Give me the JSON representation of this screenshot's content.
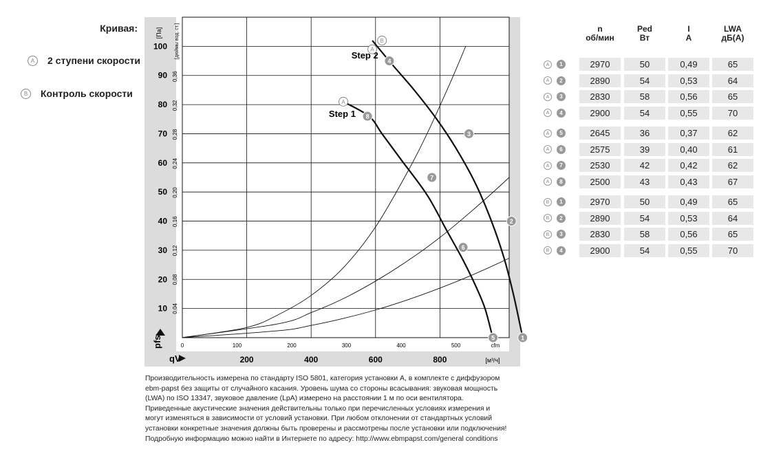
{
  "legend": {
    "title": "Кривая:",
    "items": [
      {
        "marker": "A",
        "label": "2 ступени скорости"
      },
      {
        "marker": "B",
        "label": "Контроль скорости"
      }
    ]
  },
  "chart_data": {
    "type": "line",
    "y_unit_left": "[Па]",
    "y_unit_right": "[дюймы вод. ст.]",
    "y_symbol": "pfs",
    "x_symbol": "qV",
    "x_unit_bottom": "[м³/ч]",
    "x_unit_top": "cfm",
    "y_ticks_pa": [
      10,
      20,
      30,
      40,
      50,
      60,
      70,
      80,
      90,
      100
    ],
    "y_ticks_inwg": [
      "0,04",
      "0,08",
      "0,12",
      "0,16",
      "0,20",
      "0,24",
      "0,28",
      "0,32",
      "0,36"
    ],
    "x_ticks_m3h": [
      200,
      400,
      600,
      800
    ],
    "x_ticks_cfm": [
      0,
      100,
      200,
      300,
      400,
      500
    ],
    "xlim_m3h": [
      0,
      1015
    ],
    "ylim_pa": [
      0,
      110
    ],
    "grid": true,
    "annotations": [
      {
        "text": "Step 2",
        "x": 525,
        "y": 97
      },
      {
        "text": "Step 1",
        "x": 455,
        "y": 77
      }
    ],
    "curves": [
      {
        "marker": "A",
        "points": [
          [
            500,
            81
          ],
          [
            580,
            76
          ],
          [
            620,
            70
          ],
          [
            680,
            61
          ],
          [
            760,
            49
          ],
          [
            820,
            37
          ],
          [
            870,
            27
          ],
          [
            910,
            18
          ],
          [
            940,
            10
          ],
          [
            964,
            0
          ]
        ]
      },
      {
        "marker": "B",
        "points": [
          [
            590,
            102
          ],
          [
            650,
            94
          ],
          [
            720,
            85
          ],
          [
            790,
            75
          ],
          [
            850,
            65
          ],
          [
            910,
            53
          ],
          [
            960,
            40
          ],
          [
            1000,
            27
          ],
          [
            1030,
            14
          ],
          [
            1057,
            0
          ]
        ]
      }
    ],
    "system_curves": [
      {
        "points": [
          [
            0,
            0
          ],
          [
            200,
            3.5
          ],
          [
            300,
            8
          ],
          [
            400,
            14.5
          ],
          [
            500,
            24
          ],
          [
            600,
            38
          ],
          [
            700,
            57
          ],
          [
            760,
            70
          ],
          [
            830,
            87
          ],
          [
            880,
            100
          ]
        ]
      },
      {
        "points": [
          [
            0,
            0
          ],
          [
            300,
            4.8
          ],
          [
            400,
            8.6
          ],
          [
            500,
            13.4
          ],
          [
            600,
            19.4
          ],
          [
            700,
            26.4
          ],
          [
            800,
            34.4
          ],
          [
            900,
            43.6
          ],
          [
            1010,
            54.5
          ],
          [
            1085,
            63
          ]
        ]
      },
      {
        "points": [
          [
            0,
            0
          ],
          [
            300,
            2.4
          ],
          [
            400,
            4.2
          ],
          [
            500,
            6.6
          ],
          [
            600,
            9.5
          ],
          [
            700,
            13
          ],
          [
            800,
            17
          ],
          [
            900,
            21.5
          ],
          [
            1000,
            26.5
          ],
          [
            1100,
            32
          ],
          [
            1190,
            39
          ],
          [
            1230,
            43
          ]
        ]
      }
    ],
    "points": [
      {
        "label": "1",
        "x": 1057,
        "y": 0
      },
      {
        "label": "2",
        "x": 1022,
        "y": 40
      },
      {
        "label": "3",
        "x": 890,
        "y": 70
      },
      {
        "label": "4",
        "x": 643,
        "y": 95
      },
      {
        "label": "5",
        "x": 965,
        "y": 0
      },
      {
        "label": "6",
        "x": 872,
        "y": 31
      },
      {
        "label": "7",
        "x": 775,
        "y": 55
      },
      {
        "label": "8",
        "x": 575,
        "y": 76
      }
    ],
    "curve_start_markers": [
      {
        "marker": "A",
        "x": 590,
        "y": 99
      },
      {
        "marker": "B",
        "x": 620,
        "y": 102
      },
      {
        "marker": "A",
        "x": 500,
        "y": 81
      }
    ]
  },
  "table": {
    "headers": [
      {
        "main": "n",
        "sub": "об/мин"
      },
      {
        "main": "Ped",
        "sub": "Вт"
      },
      {
        "main": "I",
        "sub": "A"
      },
      {
        "main": "LWA",
        "sub": "дБ(A)"
      }
    ],
    "groups": [
      {
        "rows": [
          {
            "curve": "A",
            "pt": "1",
            "n": "2970",
            "p": "50",
            "i": "0,49",
            "l": "65"
          },
          {
            "curve": "A",
            "pt": "2",
            "n": "2890",
            "p": "54",
            "i": "0,53",
            "l": "64"
          },
          {
            "curve": "A",
            "pt": "3",
            "n": "2830",
            "p": "58",
            "i": "0,56",
            "l": "65"
          },
          {
            "curve": "A",
            "pt": "4",
            "n": "2900",
            "p": "54",
            "i": "0,55",
            "l": "70"
          }
        ]
      },
      {
        "rows": [
          {
            "curve": "A",
            "pt": "5",
            "n": "2645",
            "p": "36",
            "i": "0,37",
            "l": "62"
          },
          {
            "curve": "A",
            "pt": "6",
            "n": "2575",
            "p": "39",
            "i": "0,40",
            "l": "61"
          },
          {
            "curve": "A",
            "pt": "7",
            "n": "2530",
            "p": "42",
            "i": "0,42",
            "l": "62"
          },
          {
            "curve": "A",
            "pt": "8",
            "n": "2500",
            "p": "43",
            "i": "0,43",
            "l": "67"
          }
        ]
      },
      {
        "rows": [
          {
            "curve": "B",
            "pt": "1",
            "n": "2970",
            "p": "50",
            "i": "0,49",
            "l": "65"
          },
          {
            "curve": "B",
            "pt": "2",
            "n": "2890",
            "p": "54",
            "i": "0,53",
            "l": "64"
          },
          {
            "curve": "B",
            "pt": "3",
            "n": "2830",
            "p": "58",
            "i": "0,56",
            "l": "65"
          },
          {
            "curve": "B",
            "pt": "4",
            "n": "2900",
            "p": "54",
            "i": "0,55",
            "l": "70"
          }
        ]
      }
    ]
  },
  "footnote": "Производительность измерена по стандарту ISO 5801, категория установки A, в комплекте с диффузором ebm-papst без защиты от случайного касания. Уровень шума со стороны всасывания: звуковая мощность (LWA) по ISO 13347, звуковое давление (LpA) измерено на расстоянии 1 м по оси вентилятора. Приведенные акустические значения действительны только при перечисленных условиях измерения и могут изменяться в зависимости от условий установки. При любом отклонении от стандартных условий установки конкретные значения должны быть проверены и рассмотрены после установки или подключения! Подробную информацию можно найти в Интернете по адресу: http://www.ebmpapst.com/general conditions"
}
